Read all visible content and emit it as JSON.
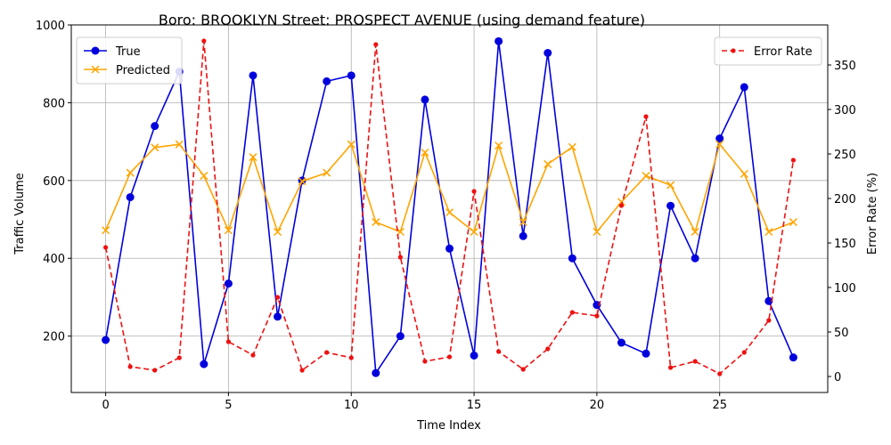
{
  "chart_data": {
    "type": "line",
    "title": "Boro: BROOKLYN Street: PROSPECT AVENUE (using demand feature)",
    "xlabel": "Time Index",
    "ylabel": "Traffic Volume",
    "y2label": "Error Rate (%)",
    "xlim": [
      -1.4,
      29.4
    ],
    "ylim": [
      55,
      1000
    ],
    "y2lim": [
      -18,
      395
    ],
    "xticks": [
      0,
      5,
      10,
      15,
      20,
      25
    ],
    "yticks": [
      200,
      400,
      600,
      800,
      1000
    ],
    "y2ticks": [
      0,
      50,
      100,
      150,
      200,
      250,
      300,
      350
    ],
    "grid": true,
    "legend_left": "top-left",
    "legend_right": "top-right",
    "x": [
      0,
      1,
      2,
      3,
      4,
      5,
      6,
      7,
      8,
      9,
      10,
      11,
      12,
      13,
      14,
      15,
      16,
      17,
      18,
      19,
      20,
      21,
      22,
      23,
      24,
      25,
      26,
      27,
      28
    ],
    "series": [
      {
        "name": "True",
        "axis": "left",
        "color": "#0000dd",
        "marker": "circle",
        "values": [
          190,
          557,
          740,
          880,
          128,
          335,
          870,
          250,
          600,
          855,
          870,
          105,
          200,
          808,
          425,
          150,
          958,
          457,
          928,
          400,
          280,
          183,
          155,
          535,
          400,
          708,
          840,
          290,
          145
        ]
      },
      {
        "name": "Predicted",
        "axis": "left",
        "color": "#ffa500",
        "marker": "x",
        "values": [
          472,
          620,
          685,
          693,
          612,
          472,
          660,
          468,
          598,
          620,
          693,
          493,
          468,
          672,
          518,
          468,
          690,
          493,
          642,
          686,
          468,
          545,
          612,
          588,
          468,
          693,
          617,
          468,
          493
        ]
      },
      {
        "name": "Error Rate",
        "axis": "right",
        "color": "#ee1111",
        "marker": "dot",
        "dashed": true,
        "values": [
          145,
          11,
          7,
          21,
          377,
          39,
          24,
          89,
          7,
          27,
          21,
          373,
          134,
          17,
          22,
          208,
          28,
          8,
          31,
          72,
          68,
          192,
          292,
          10,
          17,
          3,
          27,
          63,
          243
        ]
      }
    ]
  }
}
